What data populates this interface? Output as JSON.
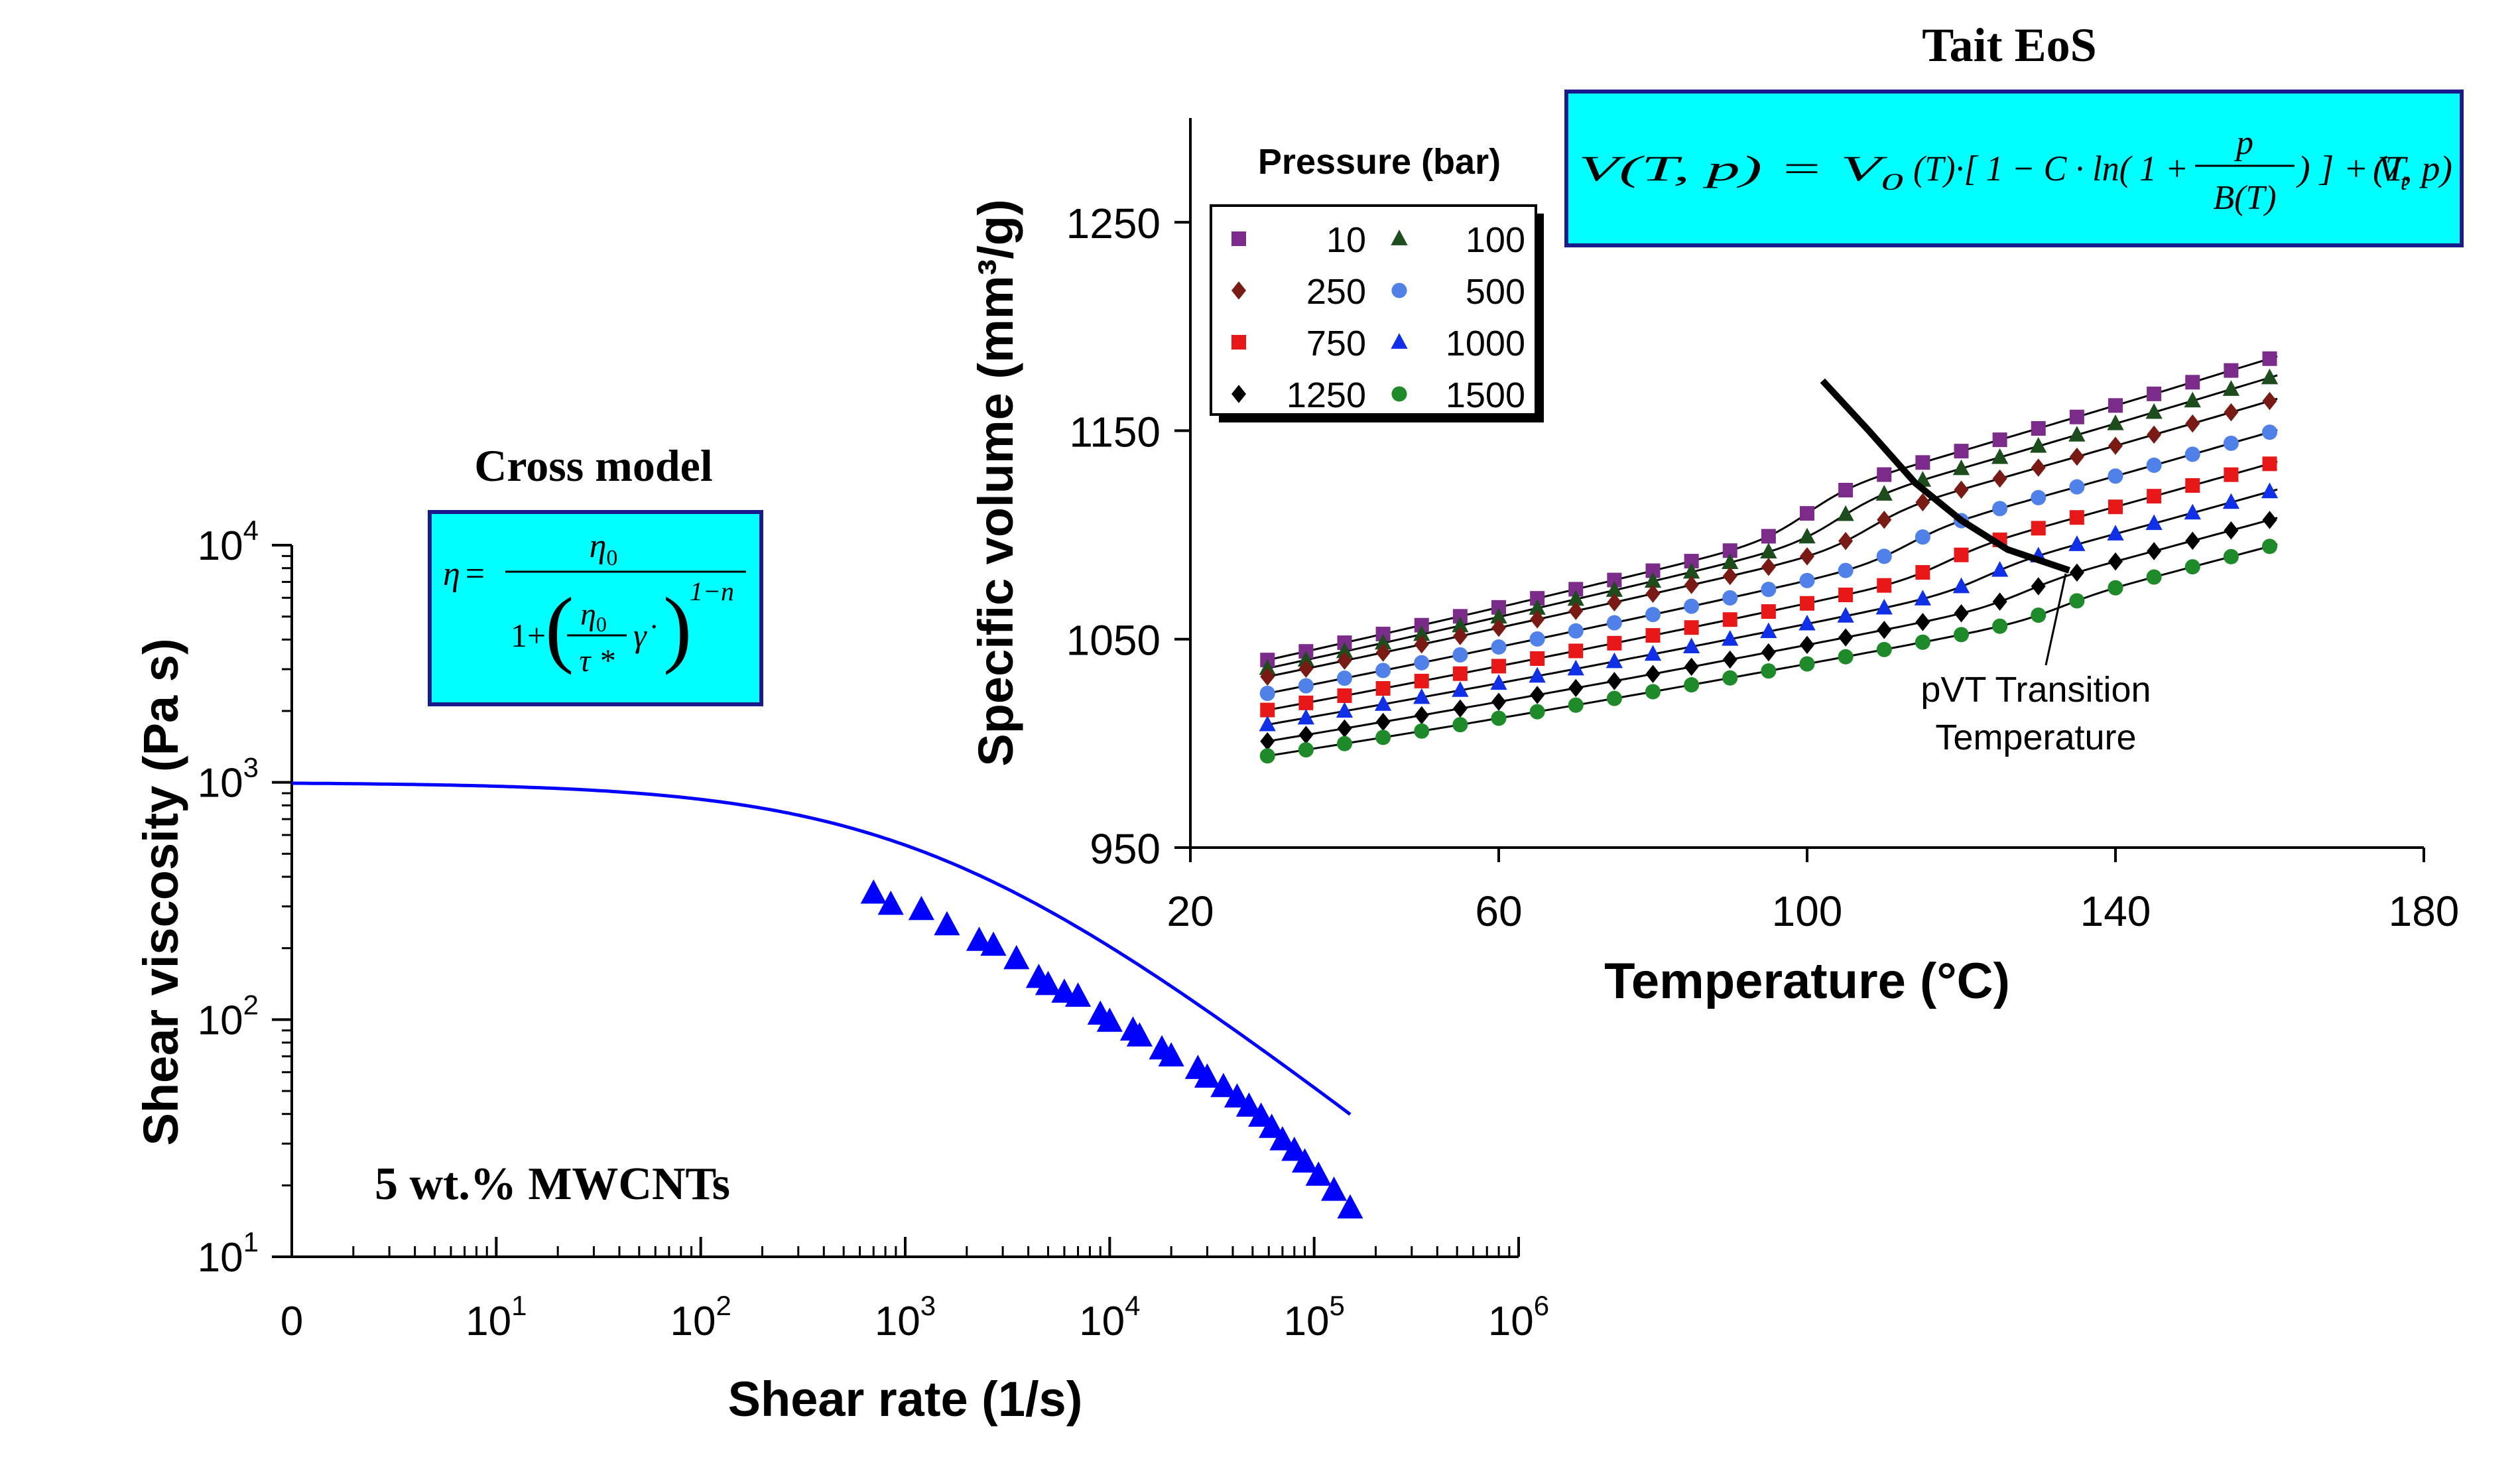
{
  "chart_data": [
    {
      "id": "viscosity",
      "type": "scatter",
      "title": "Cross model",
      "xlabel": "Shear rate (1/s)",
      "ylabel": "Shear viscosity (Pa s)",
      "xscale": "log",
      "yscale": "log",
      "xlim": [
        1,
        1000000
      ],
      "ylim": [
        10,
        10000
      ],
      "x_tick_labels": [
        {
          "base": "0",
          "exp": ""
        },
        {
          "base": "10",
          "exp": "1"
        },
        {
          "base": "10",
          "exp": "2"
        },
        {
          "base": "10",
          "exp": "3"
        },
        {
          "base": "10",
          "exp": "4"
        },
        {
          "base": "10",
          "exp": "5"
        },
        {
          "base": "10",
          "exp": "6"
        }
      ],
      "y_tick_labels": [
        {
          "base": "10",
          "exp": "1"
        },
        {
          "base": "10",
          "exp": "2"
        },
        {
          "base": "10",
          "exp": "3"
        },
        {
          "base": "10",
          "exp": "4"
        }
      ],
      "annotation": "5 wt.% MWCNTs",
      "color": "#0000ff",
      "model": {
        "eta0": 1000,
        "tau_star": 1300,
        "n": 0.33,
        "xrange": [
          1,
          150000
        ]
      },
      "points": [
        [
          700,
          340
        ],
        [
          850,
          305
        ],
        [
          1200,
          290
        ],
        [
          1600,
          250
        ],
        [
          2300,
          215
        ],
        [
          2700,
          205
        ],
        [
          3500,
          180
        ],
        [
          4500,
          150
        ],
        [
          5000,
          140
        ],
        [
          6000,
          130
        ],
        [
          7000,
          125
        ],
        [
          9000,
          105
        ],
        [
          10000,
          98
        ],
        [
          13000,
          90
        ],
        [
          14000,
          85
        ],
        [
          18000,
          75
        ],
        [
          20000,
          70
        ],
        [
          27000,
          62
        ],
        [
          30000,
          57
        ],
        [
          36000,
          52
        ],
        [
          42000,
          47
        ],
        [
          48000,
          43
        ],
        [
          55000,
          39
        ],
        [
          62000,
          35
        ],
        [
          70000,
          31
        ],
        [
          80000,
          28
        ],
        [
          90000,
          25
        ],
        [
          105000,
          22
        ],
        [
          125000,
          19
        ],
        [
          150000,
          16
        ]
      ]
    },
    {
      "id": "pvt",
      "type": "scatter",
      "title": "Tait EoS",
      "xlabel": "Temperature (°C)",
      "ylabel": "Specific volume (mm³/g)",
      "xlim": [
        20,
        180
      ],
      "ylim": [
        950,
        1300
      ],
      "x_ticks": [
        20,
        60,
        100,
        140,
        180
      ],
      "y_ticks": [
        950,
        1050,
        1150,
        1250
      ],
      "legend_title": "Pressure (bar)",
      "legend_position": "top-left",
      "transition_label_1": "pVT Transition",
      "transition_label_2": "Temperature",
      "transition_curve": [
        [
          102,
          1174
        ],
        [
          108,
          1150
        ],
        [
          114,
          1125
        ],
        [
          120,
          1107
        ],
        [
          126,
          1093
        ],
        [
          134,
          1083
        ]
      ],
      "temperatures": [
        30,
        35,
        40,
        45,
        50,
        55,
        60,
        65,
        70,
        75,
        80,
        85,
        90,
        95,
        100,
        105,
        110,
        115,
        120,
        125,
        130,
        135,
        140,
        145,
        150,
        155,
        160
      ],
      "series": [
        {
          "name": "10",
          "pressure": 10,
          "marker": "square",
          "color": "#7b2c8a",
          "v0": 1040,
          "tg": 100,
          "a1": 0.82,
          "a2": 0.95,
          "jump": 18
        },
        {
          "name": "100",
          "pressure": 100,
          "marker": "triangle",
          "color": "#1d4d1d",
          "v0": 1036,
          "tg": 104,
          "a1": 0.8,
          "a2": 0.93,
          "jump": 16
        },
        {
          "name": "250",
          "pressure": 250,
          "marker": "diamond",
          "color": "#7a1a14",
          "v0": 1032,
          "tg": 108,
          "a1": 0.76,
          "a2": 0.9,
          "jump": 14
        },
        {
          "name": "500",
          "pressure": 500,
          "marker": "circle",
          "color": "#4f81e8",
          "v0": 1024,
          "tg": 113,
          "a1": 0.72,
          "a2": 0.88,
          "jump": 12
        },
        {
          "name": "750",
          "pressure": 750,
          "marker": "square",
          "color": "#e81818",
          "v0": 1016,
          "tg": 118,
          "a1": 0.68,
          "a2": 0.86,
          "jump": 10
        },
        {
          "name": "1000",
          "pressure": 1000,
          "marker": "triangle",
          "color": "#1030e8",
          "v0": 1009,
          "tg": 123,
          "a1": 0.64,
          "a2": 0.84,
          "jump": 9
        },
        {
          "name": "1250",
          "pressure": 1250,
          "marker": "diamond",
          "color": "#000000",
          "v0": 1001,
          "tg": 128,
          "a1": 0.61,
          "a2": 0.82,
          "jump": 8
        },
        {
          "name": "1500",
          "pressure": 1500,
          "marker": "circle",
          "color": "#1f8a2a",
          "v0": 994,
          "tg": 133,
          "a1": 0.58,
          "a2": 0.8,
          "jump": 7
        }
      ]
    }
  ],
  "equations": {
    "cross": {
      "lhs": "η",
      "eq": "=",
      "num": "η",
      "num_sub": "0",
      "den_one": "1+",
      "den_frac_num": "η",
      "den_frac_num_sub": "0",
      "den_frac_den": "τ *",
      "den_gamma": "γ̇",
      "den_exp": "1−n"
    },
    "tait": {
      "text1": "V(T, p) = V",
      "sub0": "0",
      "text2": "(T)·[ 1 − C · ln( 1 + ",
      "num": "p",
      "den": "B(T)",
      "text3": " ) ] + V",
      "subt": "t",
      "text4": "(T, p)"
    }
  },
  "colors": {
    "equation_box_fill": "#00ffff",
    "equation_box_border": "#1a1a8c",
    "axis": "#000000",
    "model_line": "#0000ff"
  }
}
